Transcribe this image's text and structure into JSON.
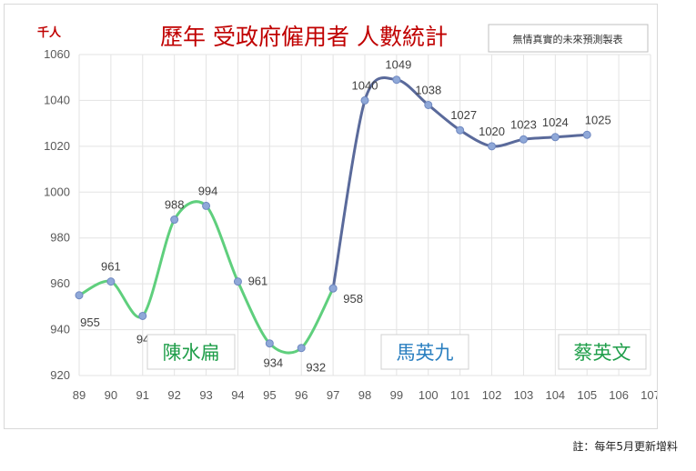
{
  "chart_data": {
    "type": "line",
    "title": "歷年 受政府僱用者 人數統計",
    "unit_label": "千人",
    "note_box": "無情真實的未來預測製表",
    "x": [
      89,
      90,
      91,
      92,
      93,
      94,
      95,
      96,
      97,
      98,
      99,
      100,
      101,
      102,
      103,
      104,
      105,
      106,
      107
    ],
    "ylim": [
      920,
      1060
    ],
    "yticks": [
      920,
      940,
      960,
      980,
      1000,
      1020,
      1040,
      1060
    ],
    "grid": true,
    "series": [
      {
        "name": "",
        "color": "#5fcf7d",
        "x": [
          89,
          90,
          91,
          92,
          93,
          94,
          95,
          96,
          97
        ],
        "values": [
          955,
          961,
          946,
          988,
          994,
          961,
          934,
          932,
          958
        ]
      },
      {
        "name": "",
        "color": "#5a6a9b",
        "x": [
          97,
          98,
          99,
          100,
          101,
          102,
          103,
          104,
          105
        ],
        "values": [
          958,
          1040,
          1049,
          1038,
          1027,
          1020,
          1023,
          1024,
          1025
        ]
      }
    ],
    "annotations": [
      {
        "text": "陳水扁",
        "color": "#1f9e4a"
      },
      {
        "text": "馬英九",
        "color": "#2a7fc0"
      },
      {
        "text": "蔡英文",
        "color": "#1f9e4a"
      }
    ]
  },
  "footnote": "註：每年5月更新增料"
}
